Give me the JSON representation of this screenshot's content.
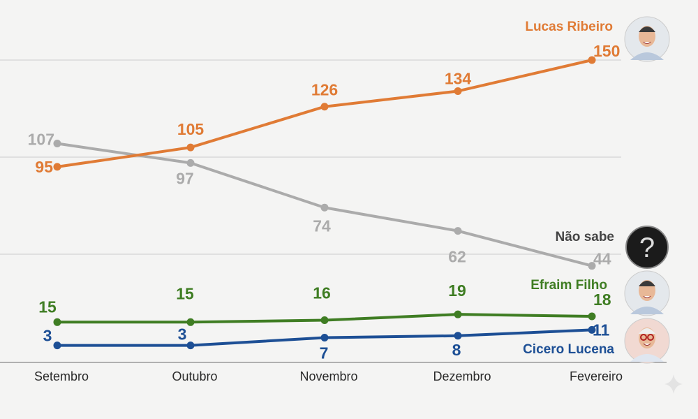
{
  "chart_data": {
    "type": "line",
    "title": "",
    "xlabel": "",
    "ylabel": "",
    "categories": [
      "Setembro",
      "Outubro",
      "Novembro",
      "Dezembro",
      "Fevereiro"
    ],
    "ylim": [
      0,
      150
    ],
    "gridlines": [
      50,
      100,
      150
    ],
    "grid": true,
    "legend": "right (inline labels with avatars)",
    "series": [
      {
        "name": "Lucas Ribeiro",
        "color": "#e07b35",
        "values": [
          95,
          105,
          126,
          134,
          150
        ],
        "avatar": "person-photo"
      },
      {
        "name": "Não sabe",
        "color": "#ababab",
        "values": [
          107,
          97,
          74,
          62,
          44
        ],
        "avatar": "question-mark-icon"
      },
      {
        "name": "Efraim Filho",
        "color": "#3f7d23",
        "values": [
          15,
          15,
          16,
          19,
          18
        ],
        "avatar": "person-photo"
      },
      {
        "name": "Cicero Lucena",
        "color": "#1d4f95",
        "values": [
          3,
          3,
          7,
          8,
          11
        ],
        "avatar": "person-photo"
      }
    ]
  }
}
